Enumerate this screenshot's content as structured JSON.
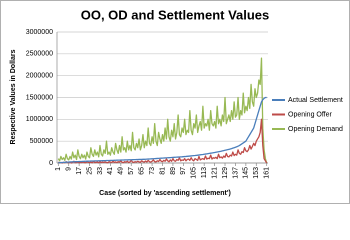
{
  "chart_data": {
    "type": "line",
    "title": "OO, OD and Settlement Values",
    "x_label": "Case (sorted by 'ascending settlement')",
    "y_label": "Respective Values in Dollars",
    "x": [
      1,
      2,
      3,
      4,
      5,
      6,
      7,
      8,
      9,
      10,
      11,
      12,
      13,
      14,
      15,
      16,
      17,
      18,
      19,
      20,
      21,
      22,
      23,
      24,
      25,
      26,
      27,
      28,
      29,
      30,
      31,
      32,
      33,
      34,
      35,
      36,
      37,
      38,
      39,
      40,
      41,
      42,
      43,
      44,
      45,
      46,
      47,
      48,
      49,
      50,
      51,
      52,
      53,
      54,
      55,
      56,
      57,
      58,
      59,
      60,
      61,
      62,
      63,
      64,
      65,
      66,
      67,
      68,
      69,
      70,
      71,
      72,
      73,
      74,
      75,
      76,
      77,
      78,
      79,
      80,
      81,
      82,
      83,
      84,
      85,
      86,
      87,
      88,
      89,
      90,
      91,
      92,
      93,
      94,
      95,
      96,
      97,
      98,
      99,
      100,
      101,
      102,
      103,
      104,
      105,
      106,
      107,
      108,
      109,
      110,
      111,
      112,
      113,
      114,
      115,
      116,
      117,
      118,
      119,
      120,
      121,
      122,
      123,
      124,
      125,
      126,
      127,
      128,
      129,
      130,
      131,
      132,
      133,
      134,
      135,
      136,
      137,
      138,
      139,
      140,
      141,
      142,
      143,
      144,
      145,
      146,
      147,
      148,
      149,
      150,
      151,
      152,
      153,
      154,
      155,
      156,
      157,
      158,
      159,
      160,
      161
    ],
    "xlim": [
      0,
      162
    ],
    "xticks": [
      1,
      9,
      17,
      25,
      33,
      41,
      49,
      57,
      65,
      73,
      81,
      89,
      97,
      105,
      113,
      121,
      129,
      137,
      145,
      153,
      161
    ],
    "ylim": [
      0,
      3000000
    ],
    "yticks": [
      0,
      500000,
      1000000,
      1500000,
      2000000,
      2500000,
      3000000
    ],
    "grid": true,
    "legend": "right",
    "series": [
      {
        "name": "Actual Settlement",
        "color": "#4a7ebb",
        "values": [
          5000,
          8000,
          10000,
          12000,
          14000,
          16000,
          18000,
          20000,
          22000,
          24000,
          25000,
          27000,
          28000,
          30000,
          31000,
          32000,
          34000,
          35000,
          36000,
          38000,
          39000,
          40000,
          41000,
          42000,
          43000,
          44000,
          45000,
          46000,
          47000,
          48000,
          49000,
          50000,
          51000,
          52000,
          53000,
          54000,
          55000,
          56000,
          57000,
          58000,
          59000,
          60000,
          61000,
          62000,
          63000,
          64000,
          65000,
          66000,
          67000,
          68000,
          69000,
          70000,
          71000,
          72000,
          73000,
          74000,
          75000,
          76000,
          77000,
          78000,
          79000,
          80000,
          81000,
          82000,
          83000,
          84000,
          85000,
          86000,
          88000,
          90000,
          92000,
          94000,
          96000,
          98000,
          100000,
          102000,
          104000,
          106000,
          108000,
          110000,
          112000,
          114000,
          116000,
          118000,
          120000,
          122000,
          124000,
          126000,
          128000,
          130000,
          132000,
          134000,
          136000,
          138000,
          140000,
          142000,
          145000,
          148000,
          150000,
          153000,
          156000,
          159000,
          162000,
          165000,
          168000,
          171000,
          175000,
          179000,
          183000,
          187000,
          191000,
          195000,
          200000,
          205000,
          210000,
          215000,
          220000,
          225000,
          230000,
          235000,
          240000,
          246000,
          252000,
          258000,
          264000,
          270000,
          277000,
          284000,
          291000,
          298000,
          305000,
          313000,
          321000,
          330000,
          340000,
          350000,
          360000,
          372000,
          385000,
          400000,
          420000,
          440000,
          460000,
          480000,
          500000,
          550000,
          600000,
          650000,
          700000,
          750000,
          800000,
          900000,
          1000000,
          1100000,
          1200000,
          1300000,
          1400000,
          1450000,
          1480000,
          1500000,
          1500000
        ]
      },
      {
        "name": "Opening Offer",
        "color": "#be4b48",
        "values": [
          20000,
          5000,
          10000,
          0,
          15000,
          5000,
          30000,
          10000,
          5000,
          20000,
          0,
          10000,
          40000,
          5000,
          10000,
          20000,
          5000,
          15000,
          10000,
          25000,
          10000,
          5000,
          30000,
          15000,
          10000,
          20000,
          5000,
          40000,
          10000,
          15000,
          20000,
          5000,
          30000,
          10000,
          20000,
          15000,
          25000,
          10000,
          5000,
          30000,
          20000,
          10000,
          40000,
          15000,
          25000,
          10000,
          30000,
          20000,
          50000,
          15000,
          10000,
          30000,
          20000,
          40000,
          10000,
          25000,
          60000,
          20000,
          15000,
          30000,
          20000,
          40000,
          25000,
          15000,
          50000,
          30000,
          20000,
          45000,
          25000,
          60000,
          30000,
          20000,
          40000,
          70000,
          30000,
          25000,
          50000,
          35000,
          80000,
          40000,
          30000,
          60000,
          40000,
          90000,
          50000,
          30000,
          70000,
          40000,
          100000,
          50000,
          40000,
          80000,
          60000,
          120000,
          50000,
          70000,
          60000,
          100000,
          50000,
          80000,
          90000,
          60000,
          120000,
          70000,
          50000,
          100000,
          80000,
          60000,
          150000,
          70000,
          90000,
          100000,
          80000,
          160000,
          90000,
          110000,
          100000,
          180000,
          90000,
          120000,
          110000,
          130000,
          100000,
          200000,
          120000,
          140000,
          110000,
          160000,
          130000,
          220000,
          150000,
          140000,
          180000,
          160000,
          250000,
          170000,
          200000,
          180000,
          300000,
          220000,
          200000,
          260000,
          240000,
          350000,
          280000,
          260000,
          300000,
          400000,
          320000,
          380000,
          450000,
          400000,
          500000,
          550000,
          600000,
          700000,
          1000000,
          400000,
          100000,
          50000,
          0
        ]
      },
      {
        "name": "Opening Demand",
        "color": "#98b954",
        "values": [
          100000,
          50000,
          150000,
          80000,
          120000,
          60000,
          200000,
          100000,
          70000,
          150000,
          90000,
          250000,
          120000,
          180000,
          80000,
          300000,
          150000,
          100000,
          200000,
          120000,
          180000,
          90000,
          250000,
          150000,
          120000,
          350000,
          200000,
          150000,
          300000,
          180000,
          250000,
          140000,
          400000,
          200000,
          160000,
          300000,
          220000,
          500000,
          200000,
          250000,
          180000,
          350000,
          250000,
          200000,
          450000,
          300000,
          220000,
          400000,
          250000,
          600000,
          300000,
          350000,
          250000,
          500000,
          300000,
          400000,
          280000,
          700000,
          350000,
          300000,
          450000,
          350000,
          550000,
          300000,
          400000,
          650000,
          350000,
          500000,
          400000,
          800000,
          450000,
          400000,
          600000,
          450000,
          900000,
          500000,
          400000,
          700000,
          550000,
          450000,
          650000,
          500000,
          800000,
          550000,
          1000000,
          600000,
          500000,
          750000,
          600000,
          900000,
          550000,
          700000,
          1100000,
          650000,
          600000,
          800000,
          700000,
          1000000,
          650000,
          750000,
          700000,
          1200000,
          750000,
          650000,
          900000,
          800000,
          1100000,
          700000,
          850000,
          950000,
          750000,
          1300000,
          800000,
          900000,
          850000,
          1000000,
          750000,
          1200000,
          900000,
          850000,
          950000,
          800000,
          1300000,
          900000,
          1000000,
          850000,
          1100000,
          950000,
          1500000,
          900000,
          1000000,
          1100000,
          950000,
          1200000,
          1000000,
          1400000,
          1050000,
          1100000,
          1500000,
          1000000,
          1200000,
          1100000,
          1600000,
          1150000,
          1300000,
          1200000,
          1500000,
          1250000,
          1800000,
          1400000,
          1300000,
          1700000,
          1500000,
          1600000,
          1900000,
          1800000,
          2400000,
          800000,
          300000,
          100000,
          0
        ]
      }
    ]
  }
}
